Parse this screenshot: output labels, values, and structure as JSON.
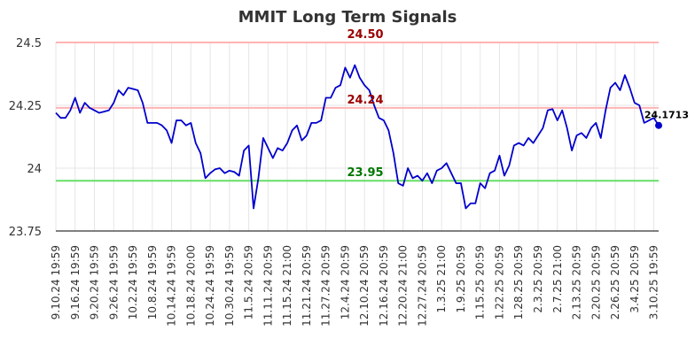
{
  "chart_data": {
    "type": "line",
    "title": "MMIT Long Term Signals",
    "xlabel": "",
    "ylabel": "",
    "ylim": [
      23.75,
      24.5
    ],
    "y_ticks": [
      "23.75",
      "24",
      "24.25",
      "24.5"
    ],
    "y_tick_values": [
      23.75,
      24.0,
      24.25,
      24.5
    ],
    "grid": true,
    "x_tick_labels": [
      "9.10.24 19:59",
      "9.16.24 19:59",
      "9.20.24 19:59",
      "9.26.24 19:59",
      "10.2.24 19:59",
      "10.8.24 19:59",
      "10.14.24 19:59",
      "10.18.24 20:00",
      "10.24.24 19:59",
      "10.30.24 19:59",
      "11.5.24 20:59",
      "11.11.24 20:59",
      "11.15.24 21:00",
      "11.21.24 20:59",
      "11.27.24 20:59",
      "12.4.24 20:59",
      "12.10.24 20:59",
      "12.16.24 20:59",
      "12.20.24 21:00",
      "12.27.24 20:59",
      "1.3.25 21:00",
      "1.9.25 20:59",
      "1.15.25 20:59",
      "1.22.25 20:59",
      "1.28.25 20:59",
      "2.3.25 20:59",
      "2.7.25 21:00",
      "2.13.25 20:59",
      "2.20.25 20:59",
      "2.26.25 20:59",
      "3.4.25 20:59",
      "3.10.25 19:59"
    ],
    "x_tick_index_step": 4,
    "series": [
      {
        "color": "#0000cc",
        "values": [
          24.22,
          24.2,
          24.2,
          24.23,
          24.28,
          24.22,
          24.26,
          24.24,
          24.23,
          24.22,
          24.225,
          24.23,
          24.26,
          24.31,
          24.29,
          24.32,
          24.315,
          24.31,
          24.26,
          24.18,
          24.18,
          24.18,
          24.17,
          24.15,
          24.1,
          24.19,
          24.19,
          24.17,
          24.18,
          24.1,
          24.06,
          23.96,
          23.98,
          23.995,
          24.0,
          23.98,
          23.99,
          23.985,
          23.97,
          24.07,
          24.09,
          23.84,
          23.96,
          24.12,
          24.08,
          24.04,
          24.08,
          24.07,
          24.1,
          24.15,
          24.17,
          24.11,
          24.13,
          24.18,
          24.18,
          24.19,
          24.28,
          24.28,
          24.32,
          24.33,
          24.4,
          24.36,
          24.41,
          24.36,
          24.33,
          24.31,
          24.25,
          24.2,
          24.19,
          24.15,
          24.06,
          23.94,
          23.93,
          24.0,
          23.96,
          23.97,
          23.95,
          23.98,
          23.94,
          23.99,
          24.0,
          24.02,
          23.98,
          23.94,
          23.94,
          23.84,
          23.86,
          23.86,
          23.94,
          23.92,
          23.98,
          23.99,
          24.05,
          23.97,
          24.01,
          24.09,
          24.1,
          24.09,
          24.12,
          24.1,
          24.13,
          24.16,
          24.23,
          24.235,
          24.19,
          24.23,
          24.16,
          24.07,
          24.13,
          24.14,
          24.12,
          24.16,
          24.18,
          24.12,
          24.23,
          24.32,
          24.34,
          24.31,
          24.37,
          24.32,
          24.26,
          24.25,
          24.18,
          24.19,
          24.2,
          24.17
        ]
      }
    ],
    "reference_lines": [
      {
        "value": 24.5,
        "label": "24.50",
        "line_color": "#ffb3b3",
        "label_color": "#990000"
      },
      {
        "value": 24.24,
        "label": "24.24",
        "line_color": "#ffb3b3",
        "label_color": "#990000"
      },
      {
        "value": 23.95,
        "label": "23.95",
        "line_color": "#66dd66",
        "label_color": "#007700"
      }
    ],
    "last_value_label": "24.1713"
  }
}
